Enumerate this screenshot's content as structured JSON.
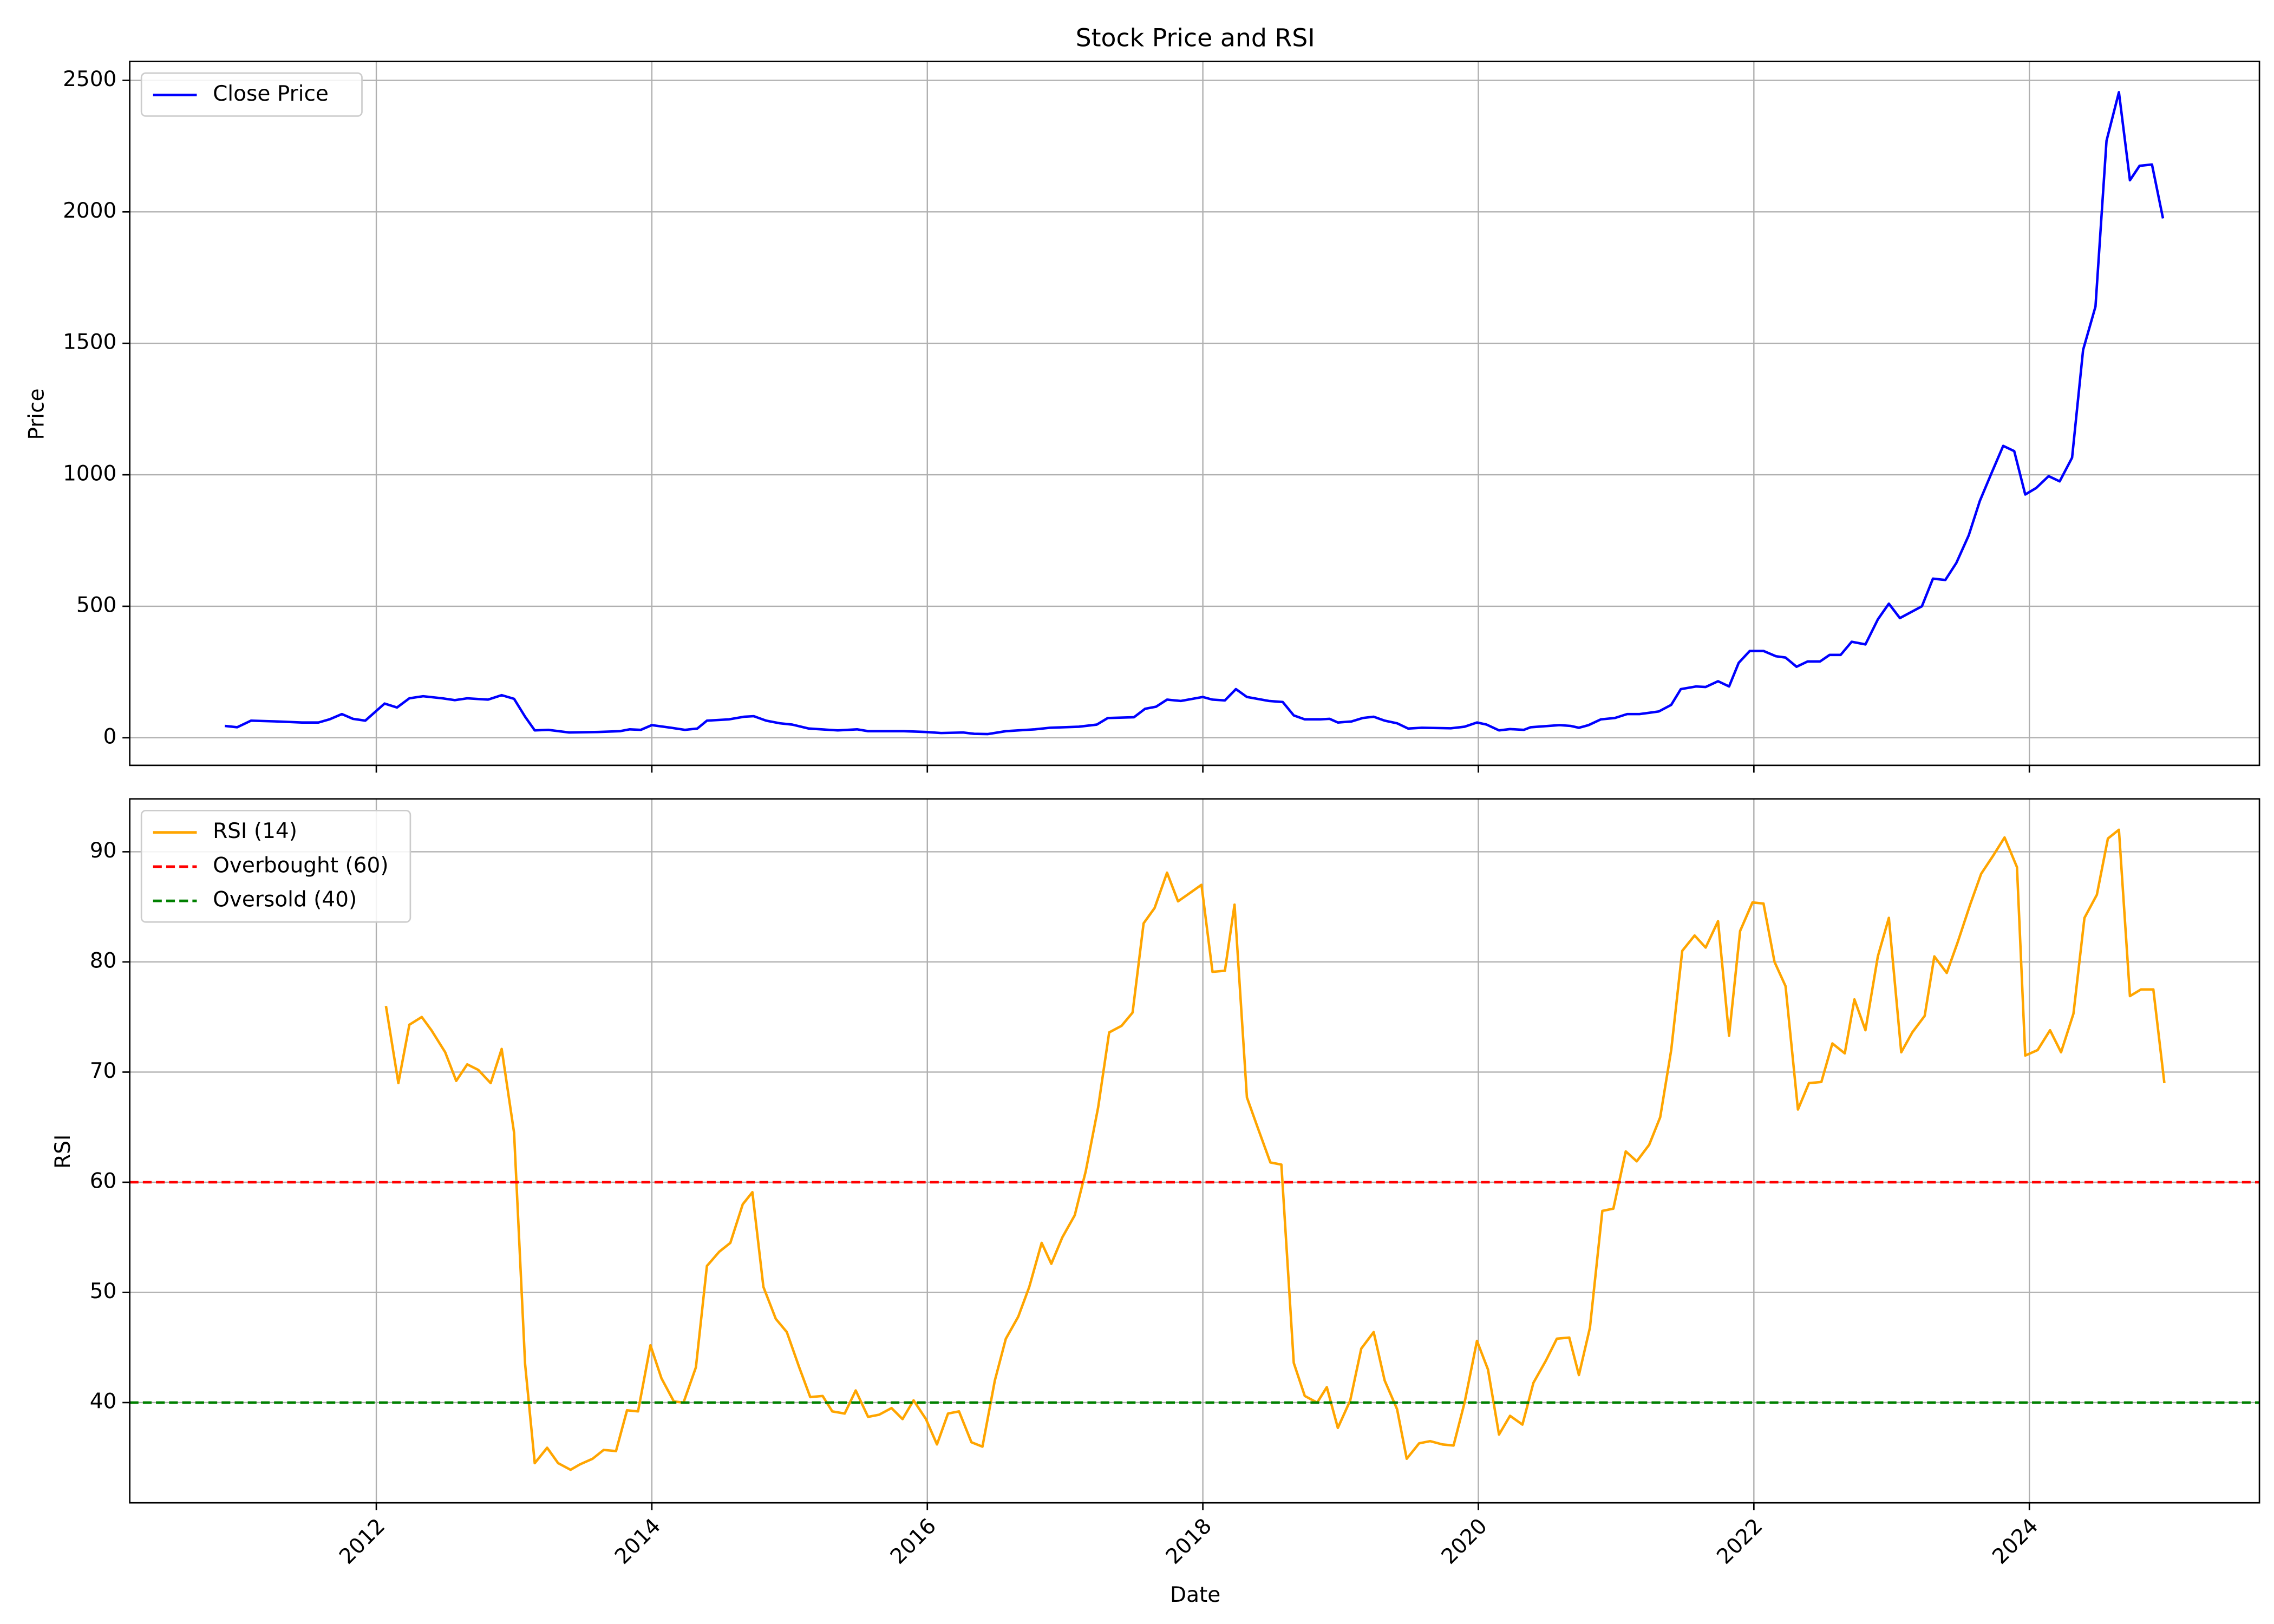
{
  "chart_data": [
    {
      "type": "line",
      "title": "Stock Price and RSI",
      "ylabel": "Price",
      "x": [
        2010.9,
        2010.99,
        2011.09,
        2011.28,
        2011.46,
        2011.58,
        2011.66,
        2011.75,
        2011.83,
        2011.92,
        2012.06,
        2012.15,
        2012.24,
        2012.34,
        2012.48,
        2012.57,
        2012.66,
        2012.81,
        2012.91,
        2013.0,
        2013.08,
        2013.15,
        2013.25,
        2013.4,
        2013.61,
        2013.77,
        2013.84,
        2013.92,
        2014.0,
        2014.14,
        2014.24,
        2014.33,
        2014.4,
        2014.56,
        2014.67,
        2014.74,
        2014.83,
        2014.93,
        2015.02,
        2015.14,
        2015.35,
        2015.49,
        2015.57,
        2015.83,
        2015.99,
        2016.1,
        2016.26,
        2016.34,
        2016.44,
        2016.57,
        2016.78,
        2016.89,
        2017.1,
        2017.23,
        2017.31,
        2017.5,
        2017.58,
        2017.66,
        2017.74,
        2017.84,
        2018.0,
        2018.07,
        2018.16,
        2018.24,
        2018.32,
        2018.48,
        2018.58,
        2018.66,
        2018.74,
        2018.85,
        2018.92,
        2018.98,
        2019.08,
        2019.16,
        2019.24,
        2019.32,
        2019.41,
        2019.49,
        2019.59,
        2019.8,
        2019.9,
        2019.99,
        2020.06,
        2020.15,
        2020.23,
        2020.33,
        2020.38,
        2020.59,
        2020.67,
        2020.73,
        2020.8,
        2020.89,
        2020.99,
        2021.08,
        2021.17,
        2021.31,
        2021.4,
        2021.47,
        2021.58,
        2021.65,
        2021.74,
        2021.82,
        2021.89,
        2021.97,
        2022.07,
        2022.16,
        2022.23,
        2022.31,
        2022.39,
        2022.48,
        2022.55,
        2022.63,
        2022.71,
        2022.81,
        2022.9,
        2022.98,
        2023.06,
        2023.22,
        2023.3,
        2023.39,
        2023.47,
        2023.56,
        2023.64,
        2023.72,
        2023.81,
        2023.89,
        2023.97,
        2024.05,
        2024.14,
        2024.22,
        2024.31,
        2024.39,
        2024.48,
        2024.56,
        2024.65,
        2024.73,
        2024.8,
        2024.89,
        2024.97
      ],
      "series": [
        {
          "name": "Close Price",
          "color": "#0000ff",
          "values": [
            45,
            40,
            65,
            62,
            58,
            58,
            70,
            90,
            72,
            65,
            130,
            115,
            150,
            158,
            150,
            143,
            150,
            145,
            162,
            148,
            80,
            28,
            30,
            20,
            22,
            25,
            32,
            30,
            48,
            38,
            30,
            35,
            65,
            70,
            80,
            82,
            65,
            55,
            50,
            35,
            28,
            32,
            25,
            25,
            22,
            18,
            20,
            15,
            14,
            25,
            32,
            38,
            42,
            50,
            75,
            78,
            110,
            118,
            145,
            140,
            155,
            145,
            142,
            185,
            155,
            140,
            136,
            85,
            70,
            70,
            72,
            58,
            62,
            75,
            80,
            65,
            55,
            35,
            38,
            36,
            42,
            58,
            50,
            28,
            33,
            30,
            40,
            48,
            45,
            38,
            48,
            70,
            75,
            90,
            90,
            100,
            125,
            185,
            195,
            193,
            215,
            195,
            285,
            330,
            330,
            310,
            305,
            270,
            290,
            290,
            315,
            315,
            365,
            355,
            450,
            510,
            455,
            500,
            605,
            600,
            665,
            770,
            900,
            1000,
            1110,
            1090,
            925,
            950,
            995,
            975,
            1065,
            1475,
            1640,
            2270,
            2455,
            2120,
            2175,
            2180,
            1975
          ]
        }
      ],
      "xlim": [
        2010.21,
        2025.67
      ],
      "ylim": [
        -105,
        2572
      ],
      "xticks": [
        2012,
        2014,
        2016,
        2018,
        2020,
        2022,
        2024
      ],
      "yticks": [
        0,
        500,
        1000,
        1500,
        2000,
        2500
      ],
      "grid": true,
      "legend": "upper left"
    },
    {
      "type": "line",
      "xlabel": "Date",
      "ylabel": "RSI",
      "x": [
        2012.07,
        2012.16,
        2012.24,
        2012.33,
        2012.4,
        2012.5,
        2012.58,
        2012.66,
        2012.74,
        2012.83,
        2012.91,
        2013.0,
        2013.08,
        2013.15,
        2013.24,
        2013.32,
        2013.41,
        2013.48,
        2013.57,
        2013.65,
        2013.74,
        2013.82,
        2013.9,
        2013.99,
        2014.07,
        2014.16,
        2014.23,
        2014.32,
        2014.4,
        2014.49,
        2014.57,
        2014.66,
        2014.73,
        2014.81,
        2014.9,
        2014.98,
        2015.07,
        2015.15,
        2015.24,
        2015.31,
        2015.4,
        2015.48,
        2015.57,
        2015.65,
        2015.74,
        2015.82,
        2015.9,
        2015.99,
        2016.07,
        2016.15,
        2016.23,
        2016.32,
        2016.4,
        2016.49,
        2016.57,
        2016.66,
        2016.74,
        2016.83,
        2016.9,
        2016.98,
        2017.07,
        2017.15,
        2017.24,
        2017.32,
        2017.41,
        2017.49,
        2017.57,
        2017.65,
        2017.74,
        2017.82,
        2017.9,
        2017.99,
        2018.07,
        2018.16,
        2018.23,
        2018.32,
        2018.4,
        2018.49,
        2018.57,
        2018.66,
        2018.74,
        2018.83,
        2018.9,
        2018.98,
        2019.07,
        2019.15,
        2019.24,
        2019.32,
        2019.41,
        2019.48,
        2019.57,
        2019.65,
        2019.74,
        2019.82,
        2019.9,
        2019.99,
        2020.07,
        2020.15,
        2020.23,
        2020.32,
        2020.4,
        2020.49,
        2020.57,
        2020.66,
        2020.73,
        2020.81,
        2020.9,
        2020.98,
        2021.07,
        2021.15,
        2021.24,
        2021.32,
        2021.4,
        2021.48,
        2021.57,
        2021.65,
        2021.74,
        2021.82,
        2021.9,
        2021.99,
        2022.07,
        2022.15,
        2022.23,
        2022.32,
        2022.4,
        2022.49,
        2022.57,
        2022.66,
        2022.73,
        2022.81,
        2022.9,
        2022.98,
        2023.07,
        2023.15,
        2023.24,
        2023.31,
        2023.4,
        2023.48,
        2023.57,
        2023.65,
        2023.74,
        2023.82,
        2023.91,
        2023.97,
        2024.06,
        2024.15,
        2024.23,
        2024.32,
        2024.4,
        2024.49,
        2024.57,
        2024.65,
        2024.73,
        2024.81,
        2024.9,
        2024.98
      ],
      "series": [
        {
          "name": "RSI (14)",
          "color": "#ffa500",
          "values": [
            76,
            69,
            74.3,
            75,
            73.8,
            71.8,
            69.2,
            70.7,
            70.2,
            69,
            72.1,
            64.5,
            43.5,
            34.5,
            35.9,
            34.5,
            33.9,
            34.4,
            34.9,
            35.7,
            35.6,
            39.3,
            39.2,
            45.2,
            42.2,
            40.1,
            40,
            43.2,
            52.4,
            53.7,
            54.5,
            58,
            59.1,
            50.5,
            47.6,
            46.4,
            43.2,
            40.5,
            40.6,
            39.2,
            39,
            41.1,
            38.7,
            38.9,
            39.5,
            38.5,
            40.2,
            38.5,
            36.2,
            39,
            39.2,
            36.4,
            36,
            42,
            45.8,
            47.8,
            50.5,
            54.5,
            52.6,
            55,
            57,
            61,
            66.8,
            73.6,
            74.2,
            75.4,
            83.5,
            84.9,
            88.1,
            85.5,
            86.2,
            87,
            79.1,
            79.2,
            85.2,
            67.7,
            64.9,
            61.8,
            61.6,
            43.6,
            40.6,
            40,
            41.4,
            37.7,
            40.2,
            44.9,
            46.4,
            42,
            39.4,
            34.9,
            36.3,
            36.5,
            36.2,
            36.1,
            40,
            45.6,
            43,
            37.1,
            38.8,
            38,
            41.8,
            43.8,
            45.8,
            45.9,
            42.5,
            46.8,
            57.4,
            57.6,
            62.8,
            61.9,
            63.4,
            65.9,
            72,
            81,
            82.4,
            81.3,
            83.7,
            73.3,
            82.8,
            85.4,
            85.3,
            80,
            77.8,
            66.6,
            69,
            69.1,
            72.6,
            71.7,
            76.6,
            73.8,
            80.5,
            84,
            71.8,
            73.6,
            75.1,
            80.5,
            79,
            81.8,
            85.2,
            88,
            89.7,
            91.3,
            88.6,
            71.5,
            72,
            73.8,
            71.8,
            75.3,
            84,
            86.1,
            91.2,
            92,
            76.9,
            77.5,
            77.5,
            69
          ]
        }
      ],
      "hlines": [
        {
          "name": "Overbought (60)",
          "color": "#ff0000",
          "value": 60,
          "linestyle": "dashed"
        },
        {
          "name": "Oversold (40)",
          "color": "#008000",
          "value": 40,
          "linestyle": "dashed"
        }
      ],
      "xlim": [
        2010.21,
        2025.67
      ],
      "ylim": [
        30.9,
        94.8
      ],
      "xticks": [
        2012,
        2014,
        2016,
        2018,
        2020,
        2022,
        2024
      ],
      "yticks": [
        40,
        50,
        60,
        70,
        80,
        90
      ],
      "grid": true,
      "legend": "upper left"
    }
  ]
}
